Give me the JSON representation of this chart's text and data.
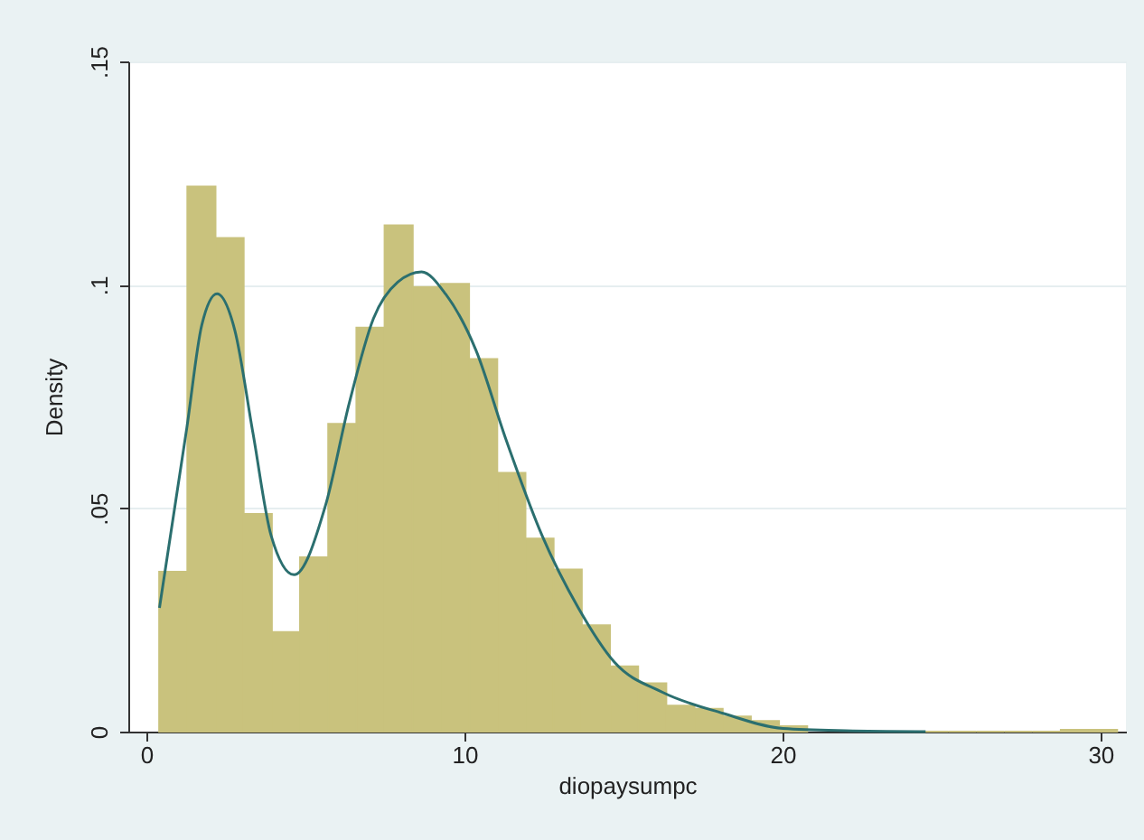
{
  "chart_data": {
    "type": "histogram",
    "xlabel": "diopaysumpc",
    "ylabel": "Density",
    "series": [
      {
        "color": "#c9c27d",
        "bins": [
          0.4,
          1.286,
          2.172,
          3.058,
          3.944,
          4.83,
          5.716,
          6.602,
          7.488,
          8.374,
          9.26,
          10.146,
          11.032,
          11.918,
          12.804,
          13.69,
          14.576,
          15.462,
          16.348,
          17.234,
          18.12,
          19.006,
          19.892,
          20.778,
          21.664,
          22.55,
          23.436,
          24.322,
          25.208,
          26.094,
          26.98,
          27.866,
          28.752,
          29.638,
          30.524
        ],
        "values": [
          0.0358,
          0.122,
          0.1105,
          0.0487,
          0.0223,
          0.039,
          0.0689,
          0.0904,
          0.1133,
          0.0995,
          0.1002,
          0.0834,
          0.0579,
          0.0432,
          0.0363,
          0.0238,
          0.0146,
          0.0108,
          0.0058,
          0.0051,
          0.0034,
          0.0024,
          0.0012,
          null,
          null,
          null,
          null,
          0,
          0,
          0,
          0,
          0,
          0.0004,
          0.0004
        ]
      },
      {
        "type": "line",
        "color": "#2b6f6f",
        "x": [
          0.41,
          1.27,
          1.74,
          2.22,
          2.78,
          3.35,
          3.92,
          4.64,
          5.63,
          6.38,
          7.14,
          7.9,
          8.65,
          9.41,
          10.36,
          11.3,
          12.44,
          13.58,
          14.72,
          16.23,
          18.13,
          20.02,
          22,
          24.5
        ],
        "values": [
          0.0277,
          0.068,
          0.091,
          0.098,
          0.0898,
          0.0668,
          0.0439,
          0.0351,
          0.0506,
          0.0736,
          0.0925,
          0.1006,
          0.1029,
          0.0979,
          0.0854,
          0.0655,
          0.0439,
          0.0277,
          0.0155,
          0.0088,
          0.0041,
          0.0007,
          0.0002,
          0
        ]
      }
    ],
    "xlim": [
      -0.57,
      30.8
    ],
    "xticks": [
      0,
      10,
      20,
      30
    ],
    "ylim": [
      0,
      0.15
    ],
    "yticks": [
      0,
      {
        "value": 0.05,
        "label": ".05"
      },
      {
        "value": 0.1,
        "label": ".1"
      },
      {
        "value": 0.15,
        "label": ".15"
      }
    ],
    "grid": "y"
  }
}
